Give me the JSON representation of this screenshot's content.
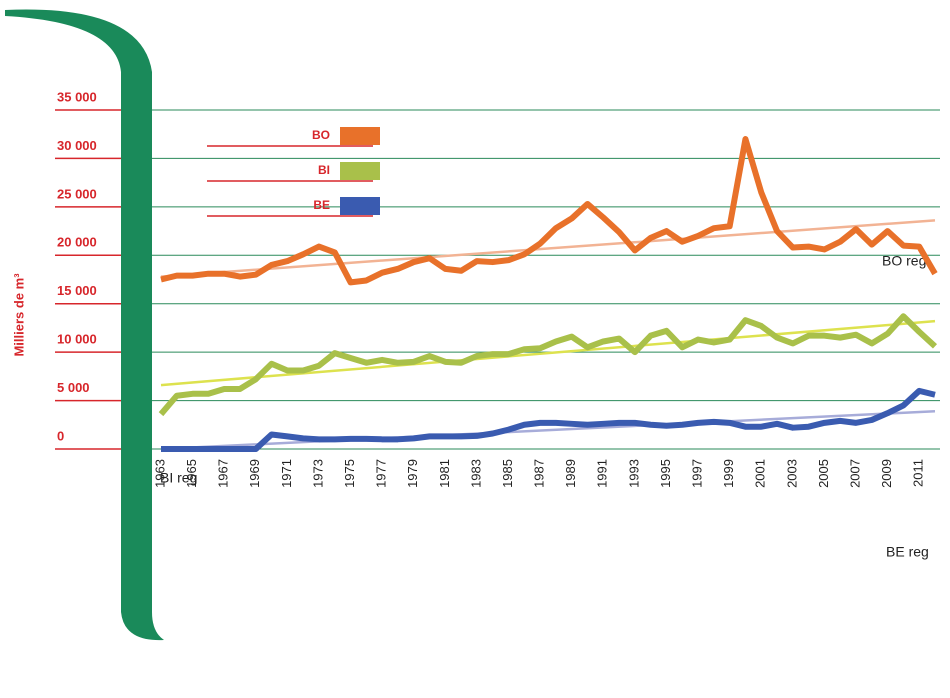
{
  "chart_data": {
    "type": "line",
    "y_label": "Milliers de m³",
    "x": [
      1963,
      1964,
      1965,
      1966,
      1967,
      1968,
      1969,
      1970,
      1971,
      1972,
      1973,
      1974,
      1975,
      1976,
      1977,
      1978,
      1979,
      1980,
      1981,
      1982,
      1983,
      1984,
      1985,
      1986,
      1987,
      1988,
      1989,
      1990,
      1991,
      1992,
      1993,
      1994,
      1995,
      1996,
      1997,
      1998,
      1999,
      2000,
      2001,
      2002,
      2003,
      2004,
      2005,
      2006,
      2007,
      2008,
      2009,
      2010,
      2011,
      2012
    ],
    "xlim": [
      1963,
      2012
    ],
    "xticks": [
      1963,
      1965,
      1967,
      1969,
      1971,
      1973,
      1975,
      1977,
      1979,
      1981,
      1983,
      1985,
      1987,
      1989,
      1991,
      1993,
      1995,
      1997,
      1999,
      2001,
      2003,
      2005,
      2007,
      2009,
      2011
    ],
    "ylim": [
      0,
      35000
    ],
    "yticks": [
      0,
      {
        "value": 5000,
        "label": "5 000"
      },
      {
        "value": 10000,
        "label": "10 000"
      },
      {
        "value": 15000,
        "label": "15 000"
      },
      {
        "value": 20000,
        "label": "20 000"
      },
      {
        "value": 25000,
        "label": "25 000"
      },
      {
        "value": 30000,
        "label": "30 000"
      },
      {
        "value": 35000,
        "label": "35 000"
      }
    ],
    "grid": true,
    "legend": "upper left",
    "series": [
      {
        "name": "BO",
        "color": "#e8712a",
        "values": [
          17500,
          17900,
          17900,
          18100,
          18100,
          17800,
          18000,
          19000,
          19400,
          20100,
          20900,
          20300,
          17200,
          17400,
          18200,
          18600,
          19300,
          19700,
          18600,
          18400,
          19400,
          19300,
          19500,
          20100,
          21200,
          22800,
          23800,
          25300,
          23900,
          22400,
          20500,
          21800,
          22500,
          21400,
          22000,
          22800,
          23000,
          32000,
          26500,
          22500,
          20800,
          20900,
          20600,
          21400,
          22700,
          21100,
          22500,
          21000,
          20900,
          18100
        ]
      },
      {
        "name": "BI",
        "color": "#a9c04a",
        "values": [
          3600,
          5500,
          5700,
          5700,
          6200,
          6200,
          7200,
          8800,
          8100,
          8100,
          8600,
          9900,
          9400,
          8900,
          9200,
          8900,
          9000,
          9600,
          9000,
          8900,
          9600,
          9800,
          9800,
          10300,
          10400,
          11100,
          11600,
          10500,
          11100,
          11400,
          10000,
          11700,
          12200,
          10500,
          11300,
          11000,
          11300,
          13300,
          12700,
          11500,
          10900,
          11700,
          11700,
          11500,
          11800,
          10900,
          11900,
          13700,
          12100,
          10600
        ]
      },
      {
        "name": "BE",
        "color": "#3a5bb0",
        "values": [
          0,
          0,
          0,
          0,
          0,
          0,
          0,
          1500,
          1300,
          1100,
          1000,
          1000,
          1050,
          1050,
          1000,
          1000,
          1100,
          1300,
          1300,
          1300,
          1350,
          1600,
          2000,
          2500,
          2700,
          2700,
          2600,
          2500,
          2600,
          2700,
          2700,
          2500,
          2400,
          2500,
          2700,
          2800,
          2700,
          2300,
          2300,
          2600,
          2200,
          2300,
          2700,
          2900,
          2700,
          3000,
          3700,
          4500,
          6000,
          5600
        ]
      }
    ],
    "trends": [
      {
        "name": "BO reg",
        "color": "#f2b394",
        "x": [
          1963,
          2012
        ],
        "values": [
          17800,
          23600
        ]
      },
      {
        "name": "BI reg",
        "color": "#dde24e",
        "x": [
          1963,
          2012
        ],
        "values": [
          6600,
          13200
        ]
      },
      {
        "name": "BE reg",
        "color": "#a7acd9",
        "x": [
          1963,
          2012
        ],
        "values": [
          0,
          3900
        ]
      }
    ]
  }
}
